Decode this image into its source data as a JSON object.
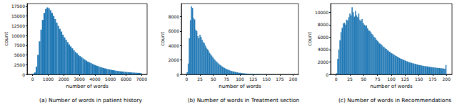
{
  "chart_data": [
    {
      "type": "histogram",
      "title": "(a) Number of words in patient history",
      "xlabel": "number of words",
      "ylabel": "count",
      "color": "#1f77b4",
      "grid": false,
      "xlim": [
        -350,
        7350
      ],
      "xticks": [
        0,
        1000,
        2000,
        3000,
        4000,
        5000,
        6000,
        7000
      ],
      "ylim": [
        0,
        18200
      ],
      "yticks": [
        0,
        2500,
        5000,
        7500,
        10000,
        12500,
        15000,
        17500
      ],
      "bins": [
        0,
        100,
        200,
        300,
        400,
        500,
        600,
        700,
        800,
        900,
        1000,
        1100,
        1200,
        1300,
        1400,
        1500,
        1600,
        1700,
        1800,
        1900,
        2000,
        2100,
        2200,
        2300,
        2400,
        2500,
        2600,
        2700,
        2800,
        2900,
        3000,
        3100,
        3200,
        3300,
        3400,
        3500,
        3600,
        3700,
        3800,
        3900,
        4000,
        4100,
        4200,
        4300,
        4400,
        4500,
        4600,
        4700,
        4800,
        4900,
        5000,
        5100,
        5200,
        5300,
        5400,
        5500,
        5600,
        5700,
        5800,
        5900,
        6000,
        6100,
        6200,
        6300,
        6400,
        6500,
        6600,
        6700,
        6800,
        6900,
        7000
      ],
      "values": [
        200,
        500,
        2000,
        5000,
        8500,
        11500,
        14000,
        15800,
        16800,
        17200,
        17000,
        16500,
        15800,
        15000,
        14200,
        13300,
        12500,
        11700,
        11000,
        10200,
        9500,
        8900,
        8300,
        7700,
        7200,
        6700,
        6200,
        5800,
        5400,
        5000,
        4700,
        4400,
        4100,
        3800,
        3550,
        3300,
        3100,
        2900,
        2700,
        2500,
        2350,
        2200,
        2050,
        1900,
        1780,
        1660,
        1550,
        1450,
        1350,
        1260,
        1180,
        1100,
        1030,
        960,
        900,
        840,
        790,
        740,
        690,
        650,
        610,
        570,
        540,
        510,
        480,
        450,
        420,
        400,
        380,
        360
      ]
    },
    {
      "type": "histogram",
      "title": "(b) Number of words in Treatment section",
      "xlabel": "number of words",
      "ylabel": "count",
      "color": "#1f77b4",
      "grid": false,
      "xlim": [
        -10,
        210
      ],
      "xticks": [
        0,
        25,
        50,
        75,
        100,
        125,
        150,
        175,
        200
      ],
      "ylim": [
        0,
        9800
      ],
      "yticks": [
        0,
        2000,
        4000,
        6000,
        8000
      ],
      "bins": [
        0,
        2,
        4,
        6,
        8,
        10,
        12,
        14,
        16,
        18,
        20,
        22,
        24,
        26,
        28,
        30,
        32,
        34,
        36,
        38,
        40,
        42,
        44,
        46,
        48,
        50,
        52,
        54,
        56,
        58,
        60,
        62,
        64,
        66,
        68,
        70,
        72,
        74,
        76,
        78,
        80,
        82,
        84,
        86,
        88,
        90,
        92,
        94,
        96,
        98,
        100,
        102,
        104,
        106,
        108,
        110,
        112,
        114,
        116,
        118,
        120,
        122,
        124,
        126,
        128,
        130,
        132,
        134,
        136,
        138,
        140,
        142,
        144,
        146,
        148,
        150,
        152,
        154,
        156,
        158,
        160,
        162,
        164,
        166,
        168,
        170,
        172,
        174,
        176,
        178,
        180,
        182,
        184,
        186,
        188,
        190,
        192,
        194,
        196,
        198,
        200
      ],
      "values": [
        300,
        1500,
        5000,
        7500,
        9400,
        9200,
        7800,
        7600,
        6200,
        6000,
        5300,
        5000,
        5500,
        5200,
        4800,
        4500,
        4300,
        4000,
        3700,
        3500,
        3300,
        3000,
        2800,
        2600,
        2400,
        2200,
        2000,
        1850,
        1700,
        1550,
        1400,
        1300,
        1200,
        1080,
        980,
        900,
        820,
        750,
        680,
        620,
        560,
        510,
        460,
        420,
        380,
        340,
        310,
        280,
        250,
        230,
        210,
        190,
        170,
        155,
        140,
        125,
        115,
        105,
        95,
        85,
        78,
        70,
        64,
        58,
        52,
        47,
        43,
        39,
        35,
        32,
        29,
        26,
        24,
        22,
        20,
        18,
        16,
        15,
        14,
        13,
        12,
        11,
        10,
        9,
        9,
        8,
        7,
        7,
        6,
        6,
        5,
        5,
        5,
        4,
        4,
        4,
        3,
        3,
        3,
        3
      ]
    },
    {
      "type": "histogram",
      "title": "(c) Number of words in Recommendations",
      "xlabel": "number of words",
      "ylabel": "count",
      "color": "#1f77b4",
      "grid": false,
      "xlim": [
        -10,
        210
      ],
      "xticks": [
        0,
        25,
        50,
        75,
        100,
        125,
        150,
        175,
        200
      ],
      "ylim": [
        0,
        11400
      ],
      "yticks": [
        0,
        2000,
        4000,
        6000,
        8000,
        10000
      ],
      "bins": [
        0,
        2,
        4,
        6,
        8,
        10,
        12,
        14,
        16,
        18,
        20,
        22,
        24,
        26,
        28,
        30,
        32,
        34,
        36,
        38,
        40,
        42,
        44,
        46,
        48,
        50,
        52,
        54,
        56,
        58,
        60,
        62,
        64,
        66,
        68,
        70,
        72,
        74,
        76,
        78,
        80,
        82,
        84,
        86,
        88,
        90,
        92,
        94,
        96,
        98,
        100,
        102,
        104,
        106,
        108,
        110,
        112,
        114,
        116,
        118,
        120,
        122,
        124,
        126,
        128,
        130,
        132,
        134,
        136,
        138,
        140,
        142,
        144,
        146,
        148,
        150,
        152,
        154,
        156,
        158,
        160,
        162,
        164,
        166,
        168,
        170,
        172,
        174,
        176,
        178,
        180,
        182,
        184,
        186,
        188,
        190,
        192,
        194,
        196,
        198,
        200
      ],
      "values": [
        200,
        2500,
        4000,
        5500,
        6800,
        7500,
        8200,
        8300,
        8000,
        8800,
        8700,
        9200,
        9800,
        9500,
        10800,
        10000,
        9300,
        10200,
        9500,
        9200,
        9800,
        8800,
        8600,
        8900,
        8300,
        8000,
        7800,
        7900,
        7400,
        7100,
        7000,
        6800,
        6500,
        6300,
        6000,
        5900,
        5600,
        5400,
        5200,
        5000,
        4900,
        4700,
        4500,
        4400,
        4200,
        4100,
        3900,
        3800,
        3650,
        3500,
        3400,
        3300,
        3150,
        3050,
        2950,
        2850,
        2750,
        2650,
        2550,
        2500,
        2400,
        2300,
        2250,
        2150,
        2100,
        2000,
        1950,
        1900,
        1850,
        1800,
        1750,
        1700,
        1650,
        1600,
        1550,
        1500,
        1480,
        1440,
        1400,
        1370,
        1340,
        1310,
        1280,
        1250,
        1220,
        1200,
        1170,
        1150,
        1120,
        1100,
        1080,
        1060,
        1040,
        1020,
        1000,
        980,
        960,
        940,
        920,
        1500
      ]
    }
  ]
}
